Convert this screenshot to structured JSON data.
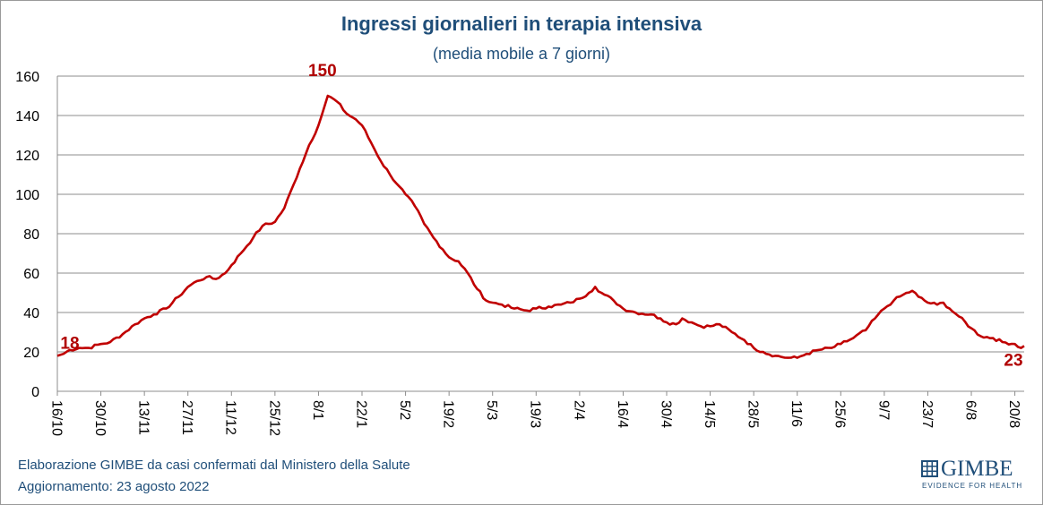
{
  "chart_data": {
    "type": "line",
    "title": "Ingressi giornalieri in terapia intensiva",
    "subtitle": "(media mobile a 7 giorni)",
    "xlabel": "",
    "ylabel": "",
    "ylim": [
      0,
      160
    ],
    "yticks": [
      0,
      20,
      40,
      60,
      80,
      100,
      120,
      140,
      160
    ],
    "grid": true,
    "legend": "none",
    "x_tick_labels": [
      "16/10",
      "30/10",
      "13/11",
      "27/11",
      "11/12",
      "25/12",
      "8/1",
      "22/1",
      "5/2",
      "19/2",
      "5/3",
      "19/3",
      "2/4",
      "16/4",
      "30/4",
      "14/5",
      "28/5",
      "11/6",
      "25/6",
      "9/7",
      "23/7",
      "6/8",
      "20/8"
    ],
    "x_tick_step_days": 14,
    "color": "#c00000",
    "series": [
      {
        "name": "",
        "x_start": "16/10",
        "x_end": "23/8",
        "anchors": [
          [
            "16/10",
            18
          ],
          [
            "18/10",
            19
          ],
          [
            "20/10",
            21
          ],
          [
            "23/10",
            22
          ],
          [
            "26/10",
            22
          ],
          [
            "30/10",
            24
          ],
          [
            "2/11",
            25
          ],
          [
            "6/11",
            29
          ],
          [
            "10/11",
            34
          ],
          [
            "13/11",
            37
          ],
          [
            "16/11",
            39
          ],
          [
            "20/11",
            42
          ],
          [
            "24/11",
            48
          ],
          [
            "27/11",
            53
          ],
          [
            "30/11",
            56
          ],
          [
            "3/12",
            58
          ],
          [
            "6/12",
            57
          ],
          [
            "9/12",
            60
          ],
          [
            "11/12",
            64
          ],
          [
            "14/12",
            70
          ],
          [
            "18/12",
            78
          ],
          [
            "21/12",
            84
          ],
          [
            "25/12",
            86
          ],
          [
            "28/12",
            93
          ],
          [
            "31/12",
            105
          ],
          [
            "2/1",
            113
          ],
          [
            "5/1",
            125
          ],
          [
            "8/1",
            135
          ],
          [
            "10/1",
            145
          ],
          [
            "11/1",
            150
          ],
          [
            "14/1",
            147
          ],
          [
            "17/1",
            141
          ],
          [
            "20/1",
            138
          ],
          [
            "22/1",
            135
          ],
          [
            "25/1",
            126
          ],
          [
            "28/1",
            117
          ],
          [
            "31/1",
            110
          ],
          [
            "3/2",
            104
          ],
          [
            "5/2",
            100
          ],
          [
            "8/2",
            94
          ],
          [
            "11/2",
            85
          ],
          [
            "14/2",
            78
          ],
          [
            "17/2",
            72
          ],
          [
            "19/2",
            68
          ],
          [
            "22/2",
            66
          ],
          [
            "25/2",
            60
          ],
          [
            "28/2",
            52
          ],
          [
            "3/3",
            46
          ],
          [
            "5/3",
            45
          ],
          [
            "8/3",
            44
          ],
          [
            "12/3",
            42
          ],
          [
            "16/3",
            41
          ],
          [
            "19/3",
            42
          ],
          [
            "23/3",
            43
          ],
          [
            "27/3",
            44
          ],
          [
            "30/3",
            45
          ],
          [
            "2/4",
            47
          ],
          [
            "5/4",
            50
          ],
          [
            "7/4",
            53
          ],
          [
            "9/4",
            50
          ],
          [
            "13/4",
            46
          ],
          [
            "16/4",
            42
          ],
          [
            "20/4",
            40
          ],
          [
            "25/4",
            39
          ],
          [
            "28/4",
            37
          ],
          [
            "30/4",
            35
          ],
          [
            "3/5",
            34
          ],
          [
            "5/5",
            37
          ],
          [
            "8/5",
            35
          ],
          [
            "11/5",
            33
          ],
          [
            "14/5",
            33
          ],
          [
            "17/5",
            34
          ],
          [
            "21/5",
            30
          ],
          [
            "25/5",
            26
          ],
          [
            "28/5",
            22
          ],
          [
            "31/5",
            20
          ],
          [
            "4/6",
            18
          ],
          [
            "8/6",
            17
          ],
          [
            "11/6",
            17
          ],
          [
            "14/6",
            19
          ],
          [
            "18/6",
            21
          ],
          [
            "22/6",
            22
          ],
          [
            "25/6",
            24
          ],
          [
            "29/6",
            27
          ],
          [
            "3/7",
            31
          ],
          [
            "6/7",
            37
          ],
          [
            "9/7",
            42
          ],
          [
            "12/7",
            46
          ],
          [
            "15/7",
            49
          ],
          [
            "18/7",
            51
          ],
          [
            "20/7",
            48
          ],
          [
            "23/7",
            45
          ],
          [
            "26/7",
            44
          ],
          [
            "28/7",
            45
          ],
          [
            "30/7",
            42
          ],
          [
            "2/8",
            38
          ],
          [
            "6/8",
            32
          ],
          [
            "9/8",
            28
          ],
          [
            "13/8",
            27
          ],
          [
            "16/8",
            25
          ],
          [
            "20/8",
            24
          ],
          [
            "22/8",
            22
          ],
          [
            "23/8",
            23
          ]
        ]
      }
    ],
    "annotations": [
      {
        "text": "18",
        "at": "16/10"
      },
      {
        "text": "150",
        "at": "11/1"
      },
      {
        "text": "23",
        "at": "23/8"
      }
    ]
  },
  "footer": {
    "line1": "Elaborazione GIMBE da casi confermati dal Ministero della Salute",
    "line2": "Aggiornamento:  23 agosto 2022"
  },
  "logo": {
    "name": "GIMBE",
    "tagline": "EVIDENCE FOR HEALTH"
  }
}
